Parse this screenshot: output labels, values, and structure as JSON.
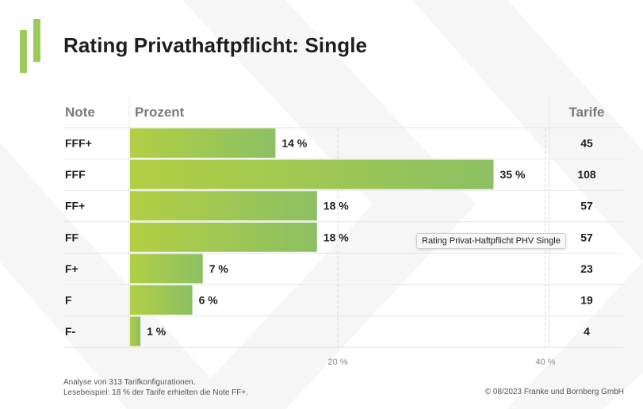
{
  "title": "Rating Privathaftpflicht: Single",
  "colors": {
    "bar_start": "#b2cf44",
    "bar_end": "#8cc063",
    "logo": "#9ccc5a",
    "header_text": "#7a7a7a",
    "grid": "#e6e6e6"
  },
  "headers": {
    "note": "Note",
    "prozent": "Prozent",
    "tarife": "Tarife"
  },
  "chart_data": {
    "type": "bar",
    "orientation": "horizontal",
    "categories": [
      "FFF+",
      "FFF",
      "FF+",
      "FF",
      "F+",
      "F",
      "F-"
    ],
    "values": [
      14,
      35,
      18,
      18,
      7,
      6,
      1
    ],
    "value_labels": [
      "14 %",
      "35 %",
      "18 %",
      "18 %",
      "7 %",
      "6 %",
      "1 %"
    ],
    "tarife": [
      "45",
      "108",
      "57",
      "57",
      "23",
      "19",
      "4"
    ],
    "xlim": [
      0,
      40
    ],
    "x_ticks": [
      20,
      40
    ],
    "x_tick_labels": [
      "20 %",
      "40 %"
    ],
    "unit": "%"
  },
  "tooltip": "Rating Privat-Haftpflicht PHV Single",
  "footnote": {
    "line1": "Analyse von 313 Tarifkonfigurationen.",
    "line2": "Lesebeispiel: 18 % der Tarife erhielten die Note FF+."
  },
  "copyright": "© 08/2023 Franke und Bornberg GmbH"
}
